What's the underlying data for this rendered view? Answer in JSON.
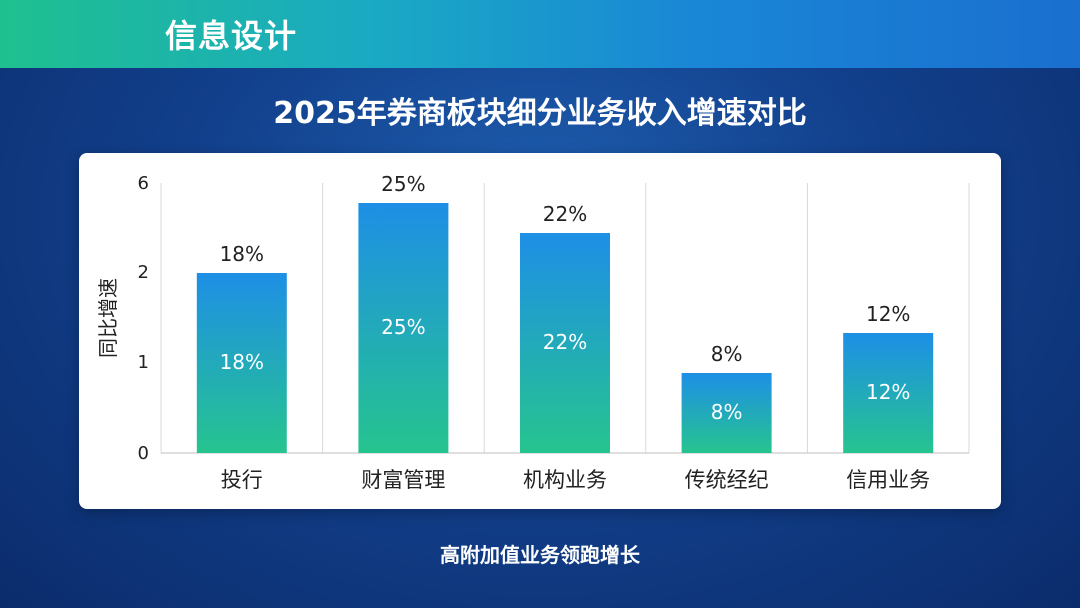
{
  "header": {
    "label": "信息设计"
  },
  "colors": {
    "bar_top": "#1e8fe6",
    "bar_bottom": "#26c48f",
    "grid": "#d9d9d9",
    "axis_text": "#222222"
  },
  "chart_data": {
    "type": "bar",
    "title": "2025年券商板块细分业务收入增速对比",
    "ylabel": "同比增速",
    "y_ticks": [
      "0",
      "1",
      "2",
      "6"
    ],
    "categories": [
      "投行",
      "财富管理",
      "机构业务",
      "传统经纪",
      "信用业务"
    ],
    "values": [
      18,
      25,
      22,
      8,
      12
    ],
    "value_labels": [
      "18%",
      "25%",
      "22%",
      "8%",
      "12%"
    ],
    "ylim": [
      0,
      27
    ],
    "grid": "vertical",
    "legend": "none"
  },
  "footer": {
    "note": "高附加值业务领跑增长"
  }
}
